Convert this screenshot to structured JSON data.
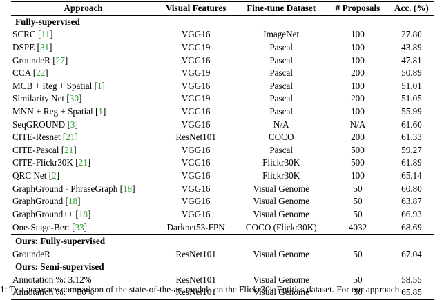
{
  "header": {
    "approach": "Approach",
    "features": "Visual Features",
    "dataset": "Fine-tune Dataset",
    "proposals": "# Proposals",
    "accuracy": "Acc. (%)"
  },
  "sections": {
    "fully": "Fully-supervised",
    "ours_fully": "Ours: Fully-supervised",
    "ours_semi": "Ours: Semi-supervised"
  },
  "rows_fully": [
    {
      "name": "SCRC",
      "ref": "11",
      "features": "VGG16",
      "dataset": "ImageNet",
      "proposals": "100",
      "acc": "27.80"
    },
    {
      "name": "DSPE",
      "ref": "31",
      "features": "VGG19",
      "dataset": "Pascal",
      "proposals": "100",
      "acc": "43.89"
    },
    {
      "name": "GroundeR",
      "ref": "27",
      "features": "VGG16",
      "dataset": "Pascal",
      "proposals": "100",
      "acc": "47.81"
    },
    {
      "name": "CCA",
      "ref": "22",
      "features": "VGG19",
      "dataset": "Pascal",
      "proposals": "200",
      "acc": "50.89"
    },
    {
      "name": "MCB + Reg + Spatial",
      "ref": "1",
      "features": "VGG16",
      "dataset": "Pascal",
      "proposals": "100",
      "acc": "51.01"
    },
    {
      "name": "Similarity Net",
      "ref": "30",
      "features": "VGG19",
      "dataset": "Pascal",
      "proposals": "200",
      "acc": "51.05"
    },
    {
      "name": "MNN + Reg + Spatial",
      "ref": "1",
      "features": "VGG16",
      "dataset": "Pascal",
      "proposals": "100",
      "acc": "55.99"
    },
    {
      "name": "SeqGROUND",
      "ref": "3",
      "features": "VGG16",
      "dataset": "N/A",
      "proposals": "N/A",
      "acc": "61.60"
    },
    {
      "name": "CITE-Resnet",
      "ref": "21",
      "features": "ResNet101",
      "dataset": "COCO",
      "proposals": "200",
      "acc": "61.33"
    },
    {
      "name": "CITE-Pascal",
      "ref": "21",
      "features": "VGG16",
      "dataset": "Pascal",
      "proposals": "500",
      "acc": "59.27"
    },
    {
      "name": "CITE-Flickr30K",
      "ref": "21",
      "features": "VGG16",
      "dataset": "Flickr30K",
      "proposals": "500",
      "acc": "61.89"
    },
    {
      "name": "QRC Net",
      "ref": "2",
      "features": "VGG16",
      "dataset": "Flickr30K",
      "proposals": "100",
      "acc": "65.14"
    },
    {
      "name": "GraphGround - PhraseGraph",
      "ref": "18",
      "features": "VGG16",
      "dataset": "Visual Genome",
      "proposals": "50",
      "acc": "60.80"
    },
    {
      "name": "GraphGround",
      "ref": "18",
      "features": "VGG16",
      "dataset": "Visual Genome",
      "proposals": "50",
      "acc": "63.87"
    },
    {
      "name": "GraphGround++",
      "ref": "18",
      "features": "VGG16",
      "dataset": "Visual Genome",
      "proposals": "50",
      "acc": "66.93"
    }
  ],
  "row_onestage": {
    "name": "One-Stage-Bert",
    "ref": "33",
    "features": "Darknet53-FPN",
    "dataset": "COCO (Flickr30K)",
    "proposals": "4032",
    "acc": "68.69"
  },
  "row_ours_fully": {
    "name": "GroundeR",
    "features": "ResNet101",
    "dataset": "Visual Genome",
    "proposals": "50",
    "acc": "67.04"
  },
  "rows_semi": [
    {
      "name": "Annotation %: 3.12%",
      "features": "ResNet101",
      "dataset": "Visual Genome",
      "proposals": "50",
      "acc": "58.55"
    },
    {
      "name": "Annotation %:     50%",
      "features": "ResNet101",
      "dataset": "Visual Genome",
      "proposals": "50",
      "acc": "65.85"
    }
  ],
  "caption": "1: Test accuracy comparison of the state-of-the-art models on the Flickr30k Entities dataset. For our approach"
}
